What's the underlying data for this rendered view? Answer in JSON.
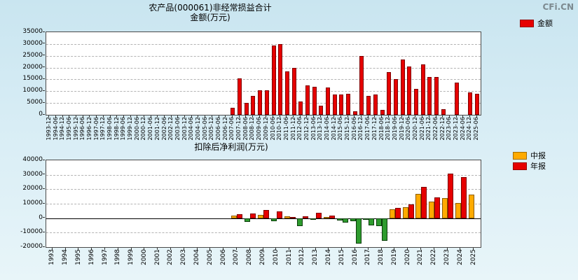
{
  "watermark": "CFi.CN",
  "colors": {
    "red": "#e60000",
    "red_border": "#7e0000",
    "yellow": "#ffaa00",
    "yellow_border": "#8a5c00",
    "green": "#2e9b2e",
    "green_border": "#0b3d0b"
  },
  "chart_data": [
    {
      "type": "bar",
      "title": "农产品(000061)非经常损益合计",
      "subtitle": "金额(万元)",
      "legend": [
        {
          "label": "金额",
          "color": "#e60000"
        }
      ],
      "ylim": [
        0,
        35000
      ],
      "ytick_step": 5000,
      "grid": "dashed",
      "legend_position": "top-right",
      "categories": [
        "1993-12",
        "1994-06",
        "1994-12",
        "1995-06",
        "1995-12",
        "1996-06",
        "1996-12",
        "1997-06",
        "1997-12",
        "1998-06",
        "1998-12",
        "1999-06",
        "1999-12",
        "2000-06",
        "2000-12",
        "2001-06",
        "2001-12",
        "2002-06",
        "2002-12",
        "2003-06",
        "2003-12",
        "2004-06",
        "2004-12",
        "2005-06",
        "2005-12",
        "2006-06",
        "2006-12",
        "2007-06",
        "2007-12",
        "2008-06",
        "2008-12",
        "2009-06",
        "2009-12",
        "2010-06",
        "2010-12",
        "2011-06",
        "2011-12",
        "2012-06",
        "2012-12",
        "2013-06",
        "2013-12",
        "2014-06",
        "2014-12",
        "2015-06",
        "2015-12",
        "2016-06",
        "2016-12",
        "2017-06",
        "2017-12",
        "2018-06",
        "2018-12",
        "2019-06",
        "2019-12",
        "2020-06",
        "2020-12",
        "2021-06",
        "2021-12",
        "2022-06",
        "2022-12",
        "2023-06",
        "2023-12",
        "2024-06",
        "2024-12",
        "2025-06"
      ],
      "values": [
        0,
        0,
        0,
        0,
        0,
        0,
        0,
        0,
        0,
        0,
        0,
        0,
        0,
        0,
        0,
        0,
        0,
        0,
        0,
        0,
        0,
        0,
        0,
        0,
        0,
        0,
        0,
        3000,
        15500,
        5000,
        8000,
        10500,
        10500,
        29500,
        30000,
        18500,
        20000,
        5500,
        12500,
        12000,
        4000,
        11500,
        8500,
        8500,
        9000,
        1500,
        25000,
        8000,
        8500,
        2000,
        18000,
        15000,
        23500,
        20500,
        11000,
        21500,
        16000,
        16000,
        2500,
        0,
        13500,
        0,
        9500,
        9000
      ]
    },
    {
      "type": "bar",
      "title": "扣除后净利润(万元)",
      "legend": [
        {
          "label": "中报",
          "color": "#ffaa00"
        },
        {
          "label": "年报",
          "color": "#e60000"
        }
      ],
      "ylim": [
        -20000,
        40000
      ],
      "ytick_step": 10000,
      "grid": "dashed",
      "legend_position": "top-right",
      "negative_bar_color": "#2e9b2e",
      "categories": [
        "1993",
        "1994",
        "1995",
        "1996",
        "1997",
        "1998",
        "1999",
        "2000",
        "2001",
        "2002",
        "2003",
        "2004",
        "2005",
        "2006",
        "2007",
        "2008",
        "2009",
        "2010",
        "2011",
        "2012",
        "2013",
        "2014",
        "2015",
        "2016",
        "2017",
        "2018",
        "2019",
        "2020",
        "2021",
        "2022",
        "2023",
        "2024",
        "2025"
      ],
      "series": [
        {
          "name": "中报",
          "values": [
            0,
            0,
            0,
            0,
            0,
            0,
            0,
            0,
            0,
            0,
            0,
            0,
            0,
            0,
            2000,
            -2500,
            2500,
            -2000,
            1500,
            -5500,
            -1000,
            1000,
            -1500,
            -2000,
            -1000,
            -5500,
            6000,
            7500,
            17000,
            11500,
            14000,
            10500,
            16500
          ]
        },
        {
          "name": "年报",
          "values": [
            0,
            0,
            0,
            0,
            0,
            0,
            0,
            0,
            0,
            0,
            0,
            0,
            0,
            0,
            2800,
            3000,
            5500,
            4500,
            1000,
            1500,
            3500,
            2000,
            -3000,
            -17500,
            -5000,
            -15500,
            7000,
            9500,
            21500,
            14500,
            31000,
            28500,
            0
          ]
        }
      ]
    }
  ]
}
